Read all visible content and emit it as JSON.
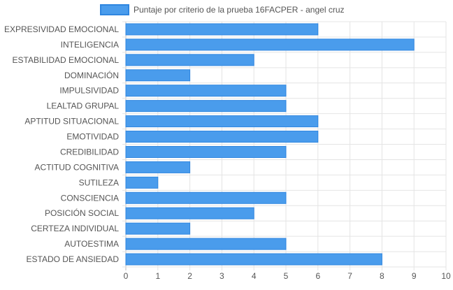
{
  "chart_data": {
    "type": "bar",
    "orientation": "horizontal",
    "categories": [
      "EXPRESIVIDAD EMOCIONAL",
      "INTELIGENCIA",
      "ESTABILIDAD EMOCIONAL",
      "DOMINACIÓN",
      "IMPULSIVIDAD",
      "LEALTAD GRUPAL",
      "APTITUD SITUACIONAL",
      "EMOTIVIDAD",
      "CREDIBILIDAD",
      "ACTITUD COGNITIVA",
      "SUTILEZA",
      "CONSCIENCIA",
      "POSICIÓN SOCIAL",
      "CERTEZA INDIVIDUAL",
      "AUTOESTIMA",
      "ESTADO DE ANSIEDAD"
    ],
    "series": [
      {
        "name": "Puntaje por criterio de la prueba 16FACPER - angel cruz",
        "values": [
          6,
          9,
          4,
          2,
          5,
          5,
          6,
          6,
          5,
          2,
          1,
          5,
          4,
          2,
          5,
          8
        ]
      }
    ],
    "xlim": [
      0,
      10
    ],
    "x_ticks": [
      "0",
      "1",
      "2",
      "3",
      "4",
      "5",
      "6",
      "7",
      "8",
      "9",
      "10"
    ],
    "grid": true,
    "legend_position": "top",
    "colors": {
      "bar_fill": "#4a9cec",
      "bar_stroke": "#2f86e0",
      "grid": "#e4e4e4",
      "axis_text": "#555555"
    }
  }
}
